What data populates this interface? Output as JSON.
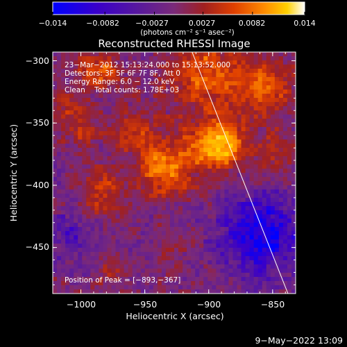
{
  "chart_data": {
    "type": "heatmap",
    "title": "Reconstructed RHESSI Image",
    "xlabel": "Heliocentric X (arcsec)",
    "ylabel": "Heliocentric Y (arcsec)",
    "xlim": [
      -1022,
      -832
    ],
    "ylim": [
      -487,
      -293
    ],
    "x_ticks": [
      -1000,
      -950,
      -900,
      -850
    ],
    "y_ticks": [
      -300,
      -350,
      -400,
      -450
    ],
    "x_tick_labels": [
      "−1000",
      "−950",
      "−900",
      "−850"
    ],
    "y_tick_labels": [
      "−300",
      "−350",
      "−400",
      "−450"
    ],
    "colorbar": {
      "range": [
        -0.014,
        0.014
      ],
      "ticks": [
        -0.014,
        -0.0082,
        -0.0027,
        0.0027,
        0.0082,
        0.014
      ],
      "tick_labels": [
        "−0.014",
        "−0.0082",
        "−0.0027",
        "0.0027",
        "0.0082",
        "0.014"
      ],
      "units": "(photons cm⁻² s⁻¹ asec⁻²)",
      "colors": [
        "#0000ff",
        "#3a00c8",
        "#5a1a9a",
        "#7a2a7a",
        "#a02020",
        "#e04000",
        "#ff8c00",
        "#ffd000",
        "#ffffff"
      ]
    },
    "annotations": {
      "time": "23−Mar−2012 15:13:24.000 to 15:13:52.000",
      "detectors": "Detectors: 3F 5F 6F 7F 8F, Att 0",
      "energy": "Energy Range: 6.0 − 12.0 keV",
      "clean": "Clean    Total counts: 1.78E+03",
      "peak": "Position of Peak = [−893,−367]"
    },
    "limb_line": [
      [
        -913,
        -293
      ],
      [
        -838,
        -487
      ]
    ],
    "sources": [
      {
        "x": -893,
        "y": -367,
        "sigma": 14,
        "amp": 0.014
      },
      {
        "x": -935,
        "y": -385,
        "sigma": 16,
        "amp": 0.0095
      },
      {
        "x": -905,
        "y": -310,
        "sigma": 20,
        "amp": 0.008
      },
      {
        "x": -858,
        "y": -320,
        "sigma": 16,
        "amp": 0.0075
      },
      {
        "x": -985,
        "y": -308,
        "sigma": 12,
        "amp": 0.007
      },
      {
        "x": -1000,
        "y": -355,
        "sigma": 10,
        "amp": 0.0055
      },
      {
        "x": -985,
        "y": -405,
        "sigma": 12,
        "amp": 0.0062
      },
      {
        "x": -960,
        "y": -355,
        "sigma": 11,
        "amp": 0.0055
      },
      {
        "x": -848,
        "y": -375,
        "sigma": 12,
        "amp": 0.005
      },
      {
        "x": -975,
        "y": -470,
        "sigma": 9,
        "amp": 0.004
      },
      {
        "x": -930,
        "y": -455,
        "sigma": 9,
        "amp": 0.003
      },
      {
        "x": -1015,
        "y": -335,
        "sigma": 8,
        "amp": 0.0045
      }
    ],
    "negative_regions": [
      {
        "x": -860,
        "y": -440,
        "sigma": 22,
        "amp": -0.01
      },
      {
        "x": -1010,
        "y": -440,
        "sigma": 14,
        "amp": -0.004
      }
    ]
  },
  "footer": {
    "timestamp": "9−May−2022 13:09"
  }
}
